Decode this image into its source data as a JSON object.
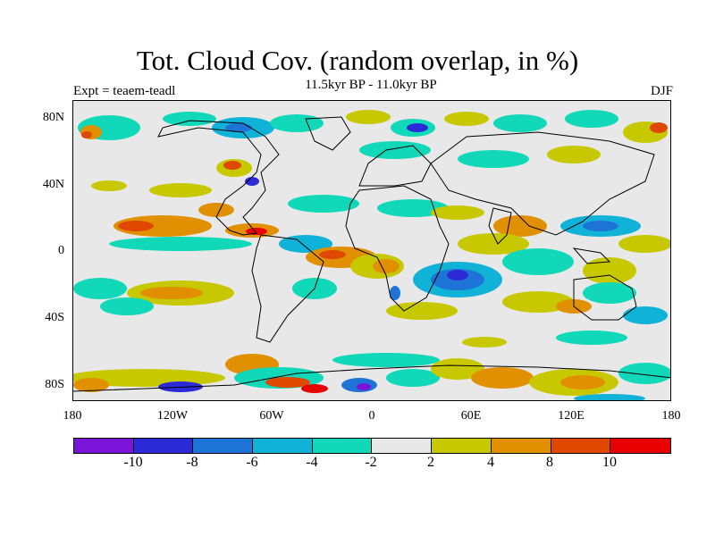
{
  "title": "Tot. Cloud Cov. (random overlap, in %)",
  "subtitle": "11.5kyr BP - 11.0kyr BP",
  "experiment": "Expt = teaem-teadl",
  "season": "DJF",
  "lat_labels": [
    "80N",
    "40N",
    "0",
    "40S",
    "80S"
  ],
  "lon_labels": [
    "180",
    "120W",
    "60W",
    "0",
    "60E",
    "120E",
    "180"
  ],
  "colorbar": {
    "colors": [
      "#7a14d8",
      "#2b2ad6",
      "#1e73d6",
      "#10b2d8",
      "#10d8b8",
      "#e8e8e8",
      "#c8c800",
      "#e09000",
      "#e04800",
      "#e80000"
    ],
    "labels": [
      "-10",
      "-8",
      "-6",
      "-4",
      "-2",
      "2",
      "4",
      "8",
      "10"
    ]
  },
  "colors": {
    "background": "#e8e8e8",
    "coast": "#000000"
  }
}
